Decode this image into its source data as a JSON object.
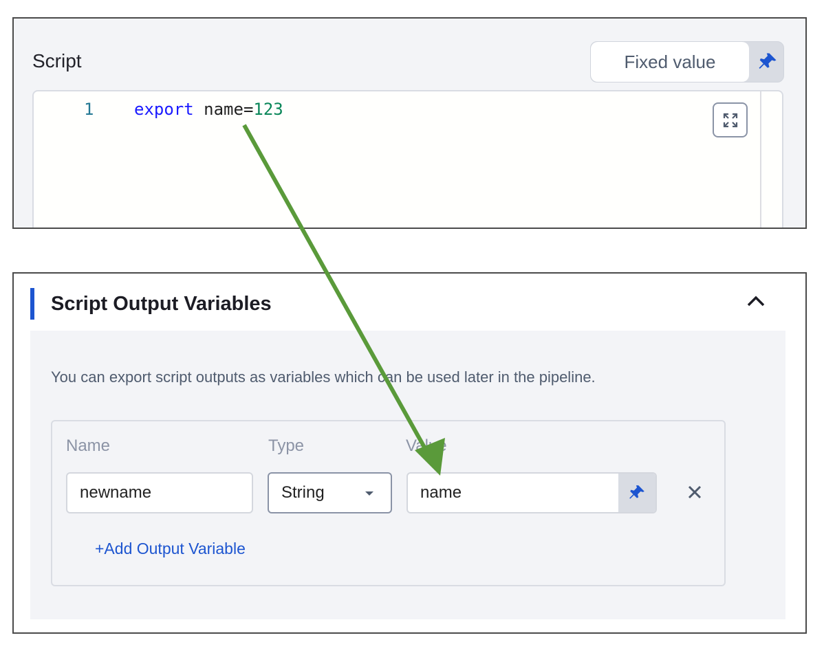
{
  "script": {
    "label": "Script",
    "mode_button": "Fixed value",
    "mode_icon": "pin-icon",
    "line_number": "1",
    "code": {
      "keyword": "export",
      "ident": " name=",
      "value": "123"
    },
    "expand_icon": "expand-icon"
  },
  "outputs": {
    "title": "Script Output Variables",
    "description": "You can export script outputs as variables which can be used later in the pipeline.",
    "columns": {
      "name": "Name",
      "type": "Type",
      "value": "Value"
    },
    "row": {
      "name": "newname",
      "type": "String",
      "value": "name"
    },
    "add_label": "+Add Output Variable",
    "remove_icon": "close-icon",
    "collapse_icon": "chevron-up-icon"
  },
  "colors": {
    "accent": "#1d55d0",
    "annotation_arrow": "#5a9a3a"
  }
}
